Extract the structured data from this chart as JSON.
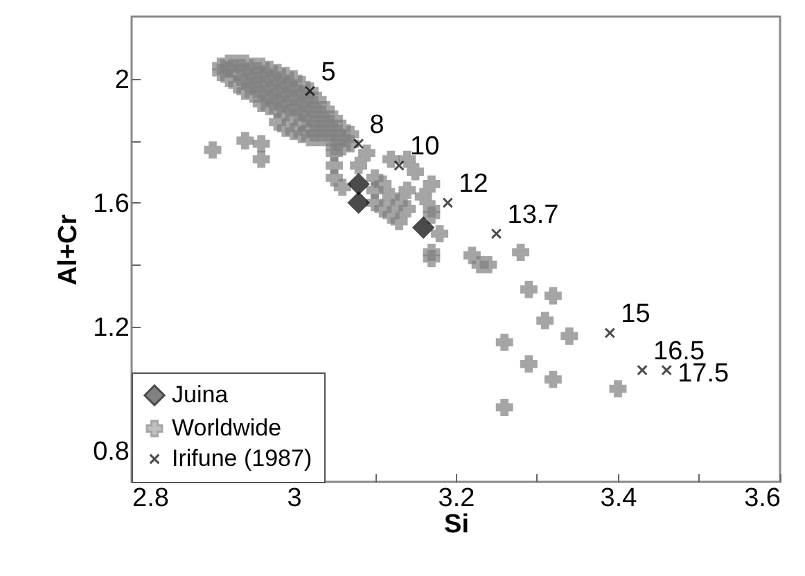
{
  "chart_data": {
    "type": "scatter",
    "xlabel": "Si",
    "ylabel": "Al+Cr",
    "xlim": [
      2.8,
      3.6
    ],
    "xticks": [
      2.8,
      {
        "value": 2.9,
        "label": null
      },
      3,
      {
        "value": 3.1,
        "label": null
      },
      3.2,
      {
        "value": 3.3,
        "label": null
      },
      3.4,
      {
        "value": 3.5,
        "label": null
      },
      3.6
    ],
    "ylim": [
      0.7,
      2.2
    ],
    "yticks": [
      0.8,
      {
        "value": 1.0,
        "label": null
      },
      1.2,
      {
        "value": 1.4,
        "label": null
      },
      1.6,
      {
        "value": 1.8,
        "label": null
      },
      2
    ],
    "grid": false,
    "legend": "bottom left",
    "series": [
      {
        "name": "Juina",
        "color": "#000000",
        "marker": "diamond",
        "x": [
          3.08,
          3.08,
          3.16
        ],
        "values": [
          1.66,
          1.6,
          1.52
        ]
      },
      {
        "name": "Worldwide",
        "color": "#808080",
        "marker": "cross",
        "x": [
          2.91,
          2.91,
          2.92,
          2.92,
          2.92,
          2.93,
          2.93,
          2.93,
          2.94,
          2.94,
          2.94,
          2.94,
          2.95,
          2.95,
          2.95,
          2.95,
          2.96,
          2.96,
          2.96,
          2.96,
          2.96,
          2.97,
          2.97,
          2.97,
          2.97,
          2.97,
          2.98,
          2.98,
          2.98,
          2.98,
          2.98,
          2.98,
          2.99,
          2.99,
          2.99,
          2.99,
          2.99,
          2.99,
          3.0,
          3.0,
          3.0,
          3.0,
          3.0,
          3.0,
          3.01,
          3.01,
          3.01,
          3.01,
          3.01,
          3.01,
          3.02,
          3.02,
          3.02,
          3.02,
          3.02,
          3.02,
          3.03,
          3.03,
          3.03,
          3.03,
          3.03,
          3.04,
          3.04,
          3.04,
          3.04,
          3.05,
          3.05,
          3.05,
          3.05,
          3.06,
          3.06,
          3.06,
          3.07,
          3.07,
          3.05,
          3.05,
          3.05,
          3.06,
          3.08,
          3.09,
          3.1,
          3.1,
          3.1,
          3.11,
          3.11,
          3.12,
          3.12,
          3.13,
          3.13,
          3.14,
          3.14,
          3.15,
          3.16,
          3.17,
          3.17,
          3.17,
          3.18,
          3.17,
          3.17,
          3.12,
          3.14,
          2.9,
          2.94,
          2.96,
          2.96,
          3.22,
          3.23,
          3.24,
          3.28,
          3.29,
          3.32,
          3.31,
          3.34,
          3.26,
          3.29,
          3.32,
          3.26,
          3.4
        ],
        "values": [
          2.04,
          2.02,
          2.05,
          2.03,
          2.0,
          2.05,
          2.02,
          1.98,
          2.05,
          2.02,
          1.99,
          1.96,
          2.04,
          2.01,
          1.98,
          1.95,
          2.04,
          2.01,
          1.98,
          1.95,
          1.92,
          2.03,
          2.0,
          1.97,
          1.94,
          1.91,
          2.02,
          1.99,
          1.96,
          1.93,
          1.9,
          1.86,
          2.01,
          1.98,
          1.95,
          1.92,
          1.89,
          1.84,
          2.0,
          1.97,
          1.94,
          1.91,
          1.88,
          1.83,
          1.98,
          1.95,
          1.92,
          1.89,
          1.86,
          1.82,
          1.96,
          1.93,
          1.9,
          1.87,
          1.84,
          1.81,
          1.93,
          1.9,
          1.87,
          1.84,
          1.81,
          1.9,
          1.87,
          1.84,
          1.81,
          1.87,
          1.84,
          1.81,
          1.78,
          1.84,
          1.81,
          1.78,
          1.82,
          1.79,
          1.76,
          1.72,
          1.68,
          1.65,
          1.72,
          1.76,
          1.68,
          1.64,
          1.6,
          1.66,
          1.58,
          1.62,
          1.56,
          1.6,
          1.54,
          1.64,
          1.58,
          1.7,
          1.62,
          1.66,
          1.58,
          1.56,
          1.5,
          1.44,
          1.42,
          1.74,
          1.74,
          1.77,
          1.8,
          1.79,
          1.74,
          1.43,
          1.4,
          1.4,
          1.44,
          1.32,
          1.3,
          1.22,
          1.17,
          1.15,
          1.08,
          1.03,
          0.94,
          1.0
        ]
      },
      {
        "name": "Irifune (1987)",
        "color": "#000000",
        "marker": "x",
        "x": [
          3.02,
          3.08,
          3.13,
          3.19,
          3.25,
          3.39,
          3.43,
          3.46
        ],
        "values": [
          1.96,
          1.79,
          1.72,
          1.6,
          1.5,
          1.18,
          1.06,
          1.06
        ]
      }
    ],
    "annotations": [
      {
        "text": "5",
        "x": 3.02,
        "y": 1.96
      },
      {
        "text": "8",
        "x": 3.08,
        "y": 1.79
      },
      {
        "text": "10",
        "x": 3.13,
        "y": 1.72
      },
      {
        "text": "12",
        "x": 3.19,
        "y": 1.6
      },
      {
        "text": "13.7",
        "x": 3.25,
        "y": 1.5
      },
      {
        "text": "15",
        "x": 3.39,
        "y": 1.18
      },
      {
        "text": "16.5",
        "x": 3.43,
        "y": 1.06
      },
      {
        "text": "17.5",
        "x": 3.46,
        "y": 1.06
      }
    ]
  }
}
